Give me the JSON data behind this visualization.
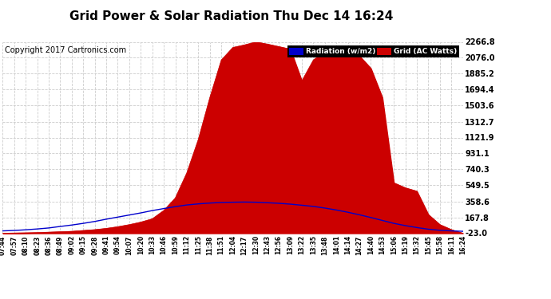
{
  "title": "Grid Power & Solar Radiation Thu Dec 14 16:24",
  "copyright": "Copyright 2017 Cartronics.com",
  "background_color": "#ffffff",
  "plot_bg_color": "#ffffff",
  "grid_color": "#cccccc",
  "yticks": [
    -23.0,
    167.8,
    358.6,
    549.5,
    740.3,
    931.1,
    1121.9,
    1312.7,
    1503.6,
    1694.4,
    1885.2,
    2076.0,
    2266.8
  ],
  "ylim": [
    -23.0,
    2266.8
  ],
  "xtick_labels": [
    "07:44",
    "07:57",
    "08:10",
    "08:23",
    "08:36",
    "08:49",
    "09:02",
    "09:15",
    "09:28",
    "09:41",
    "09:54",
    "10:07",
    "10:20",
    "10:33",
    "10:46",
    "10:59",
    "11:12",
    "11:25",
    "11:38",
    "11:51",
    "12:04",
    "12:17",
    "12:30",
    "12:43",
    "12:56",
    "13:09",
    "13:22",
    "13:35",
    "13:48",
    "14:01",
    "14:14",
    "14:27",
    "14:40",
    "14:53",
    "15:06",
    "15:19",
    "15:32",
    "15:45",
    "15:58",
    "16:11",
    "16:24"
  ],
  "legend_labels": [
    "Radiation (w/m2)",
    "Grid (AC Watts)"
  ],
  "legend_colors_bg": [
    "#0000cc",
    "#cc0000"
  ],
  "radiation_color": "#0000cc",
  "grid_power_color": "#cc0000",
  "grid_power_fill": "#cc0000",
  "title_fontsize": 11,
  "copyright_fontsize": 7,
  "grid_power_data": [
    -23,
    -20,
    -18,
    -15,
    -10,
    -5,
    0,
    10,
    20,
    35,
    55,
    80,
    110,
    150,
    250,
    400,
    700,
    1100,
    1600,
    2050,
    2200,
    2230,
    2266,
    2240,
    2210,
    2180,
    1800,
    2050,
    2150,
    2220,
    2180,
    2100,
    1950,
    1600,
    580,
    520,
    480,
    200,
    80,
    20,
    -23
  ],
  "radiation_data": [
    5,
    10,
    18,
    28,
    40,
    58,
    75,
    95,
    118,
    145,
    170,
    195,
    220,
    248,
    272,
    295,
    315,
    328,
    338,
    345,
    348,
    350,
    348,
    342,
    335,
    325,
    312,
    298,
    278,
    255,
    228,
    198,
    165,
    130,
    95,
    68,
    45,
    25,
    12,
    5,
    0
  ]
}
